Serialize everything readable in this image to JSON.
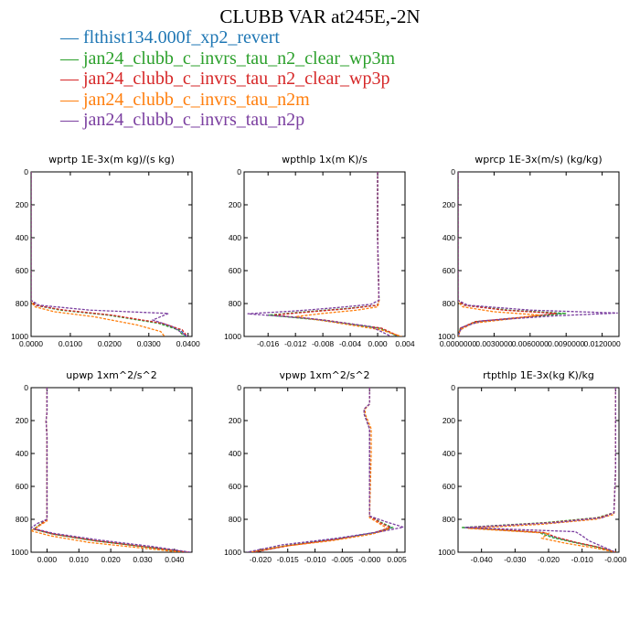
{
  "title": "CLUBB VAR at245E,-2N",
  "legend": [
    {
      "label": "flthist134.000f_xp2_revert",
      "color": "#1f77b4"
    },
    {
      "label": "jan24_clubb_c_invrs_tau_n2_clear_wp3m",
      "color": "#2ca02c"
    },
    {
      "label": "jan24_clubb_c_invrs_tau_n2_clear_wp3p",
      "color": "#d62728"
    },
    {
      "label": "jan24_clubb_c_invrs_tau_n2m",
      "color": "#ff7f0e"
    },
    {
      "label": "jan24_clubb_c_invrs_tau_n2p",
      "color": "#7b3fa0"
    }
  ],
  "chart_data": [
    {
      "type": "line",
      "title": "wprtp  1E-3x(m kg)/(s kg)",
      "xlim": [
        0,
        0.041
      ],
      "ylim": [
        1000,
        0
      ],
      "xticks": [
        "0.0000",
        "0.0100",
        "0.0200",
        "0.0300",
        "0.0400"
      ],
      "xtick_values": [
        0,
        0.01,
        0.02,
        0.03,
        0.04
      ],
      "yticks": [
        "0",
        "200",
        "400",
        "600",
        "800",
        "1000"
      ],
      "series": [
        {
          "color": "#1f77b4",
          "y": [
            0,
            780,
            810,
            840,
            870,
            920,
            960,
            1000
          ],
          "x": [
            0,
            0,
            0.001,
            0.008,
            0.02,
            0.033,
            0.038,
            0.0395
          ]
        },
        {
          "color": "#2ca02c",
          "y": [
            0,
            780,
            810,
            840,
            870,
            920,
            960,
            1000
          ],
          "x": [
            0,
            0,
            0.001,
            0.0075,
            0.0195,
            0.0325,
            0.0375,
            0.039
          ]
        },
        {
          "color": "#d62728",
          "y": [
            0,
            780,
            810,
            840,
            870,
            920,
            960,
            1000
          ],
          "x": [
            0,
            0,
            0.001,
            0.0085,
            0.0205,
            0.0335,
            0.0385,
            0.0398
          ]
        },
        {
          "color": "#ff7f0e",
          "y": [
            0,
            790,
            820,
            850,
            880,
            930,
            970,
            1000
          ],
          "x": [
            0,
            0,
            0.001,
            0.006,
            0.016,
            0.027,
            0.033,
            0.034
          ]
        },
        {
          "color": "#7b3fa0",
          "y": [
            0,
            780,
            810,
            840,
            860,
            900,
            940,
            1000
          ],
          "x": [
            0,
            0,
            0.002,
            0.015,
            0.035,
            0.031,
            0.036,
            0.0398
          ]
        }
      ]
    },
    {
      "type": "line",
      "title": "wpthlp  1x(m K)/s",
      "xlim": [
        -0.0195,
        0.004
      ],
      "ylim": [
        1000,
        0
      ],
      "xticks": [
        "-0.016",
        "-0.012",
        "-0.008",
        "-0.004",
        "0.000",
        "0.004"
      ],
      "xtick_values": [
        -0.016,
        -0.012,
        -0.008,
        -0.004,
        0,
        0.004
      ],
      "yticks": [
        "0",
        "200",
        "400",
        "600",
        "800",
        "1000"
      ],
      "series": [
        {
          "color": "#1f77b4",
          "y": [
            0,
            400,
            780,
            810,
            830,
            850,
            870,
            900,
            950,
            1000
          ],
          "x": [
            0,
            0,
            0.0002,
            0,
            -0.004,
            -0.01,
            -0.0155,
            -0.008,
            0.0005,
            0.003
          ]
        },
        {
          "color": "#2ca02c",
          "y": [
            0,
            400,
            780,
            810,
            830,
            850,
            870,
            900,
            950,
            1000
          ],
          "x": [
            0,
            0,
            0.0002,
            0,
            -0.0045,
            -0.0105,
            -0.016,
            -0.0085,
            0.0003,
            0.003
          ]
        },
        {
          "color": "#d62728",
          "y": [
            0,
            400,
            780,
            810,
            830,
            850,
            870,
            900,
            950,
            1000
          ],
          "x": [
            0,
            0,
            0.0002,
            0,
            -0.004,
            -0.0098,
            -0.0152,
            -0.0078,
            0.0006,
            0.0032
          ]
        },
        {
          "color": "#ff7f0e",
          "y": [
            0,
            400,
            790,
            820,
            840,
            860,
            880,
            910,
            960,
            1000
          ],
          "x": [
            0,
            0,
            0.0002,
            0,
            -0.003,
            -0.008,
            -0.012,
            -0.007,
            0.0005,
            0.0035
          ]
        },
        {
          "color": "#7b3fa0",
          "y": [
            0,
            400,
            780,
            805,
            825,
            845,
            862,
            890,
            940,
            1000
          ],
          "x": [
            0,
            0,
            0.0002,
            -0.001,
            -0.006,
            -0.012,
            -0.019,
            -0.01,
            -0.001,
            0.002
          ]
        }
      ]
    },
    {
      "type": "line",
      "title": "wprcp  1E-3x(m/s) (kg/kg)",
      "xlim": [
        0,
        0.0134
      ],
      "ylim": [
        1000,
        0
      ],
      "xticks": [
        "0.0000000",
        "0.0030000",
        "0.0060000",
        "0.0090000",
        "0.0120000"
      ],
      "xtick_values": [
        0,
        0.003,
        0.006,
        0.009,
        0.012
      ],
      "yticks": [
        "0",
        "200",
        "400",
        "600",
        "800",
        "1000"
      ],
      "series": [
        {
          "color": "#1f77b4",
          "y": [
            0,
            780,
            810,
            840,
            860,
            880,
            910,
            950,
            1000
          ],
          "x": [
            0,
            0,
            0.0005,
            0.004,
            0.0085,
            0.006,
            0.0015,
            0.0002,
            0
          ]
        },
        {
          "color": "#2ca02c",
          "y": [
            0,
            780,
            810,
            840,
            860,
            880,
            910,
            950,
            1000
          ],
          "x": [
            0,
            0,
            0.0005,
            0.0042,
            0.009,
            0.0062,
            0.0015,
            0.0002,
            0
          ]
        },
        {
          "color": "#d62728",
          "y": [
            0,
            780,
            810,
            840,
            860,
            880,
            910,
            950,
            1000
          ],
          "x": [
            0,
            0,
            0.0005,
            0.0038,
            0.0082,
            0.0058,
            0.0014,
            0.0002,
            0
          ]
        },
        {
          "color": "#ff7f0e",
          "y": [
            0,
            790,
            820,
            850,
            870,
            890,
            920,
            960,
            1000
          ],
          "x": [
            0,
            0,
            0.0004,
            0.003,
            0.0068,
            0.0048,
            0.0012,
            0.0002,
            0
          ]
        },
        {
          "color": "#7b3fa0",
          "y": [
            0,
            780,
            810,
            840,
            858,
            875,
            905,
            945,
            1000
          ],
          "x": [
            0,
            0,
            0.0008,
            0.006,
            0.0133,
            0.008,
            0.002,
            0.0003,
            0
          ]
        }
      ]
    },
    {
      "type": "line",
      "title": "upwp  1xm^2/s^2",
      "xlim": [
        -0.005,
        0.0455
      ],
      "ylim": [
        1000,
        0
      ],
      "xticks": [
        "0.000",
        "0.010",
        "0.020",
        "0.030",
        "0.040"
      ],
      "xtick_values": [
        0,
        0.01,
        0.02,
        0.03,
        0.04
      ],
      "yticks": [
        "0",
        "200",
        "400",
        "600",
        "800",
        "1000"
      ],
      "series": [
        {
          "color": "#1f77b4",
          "y": [
            0,
            150,
            200,
            300,
            800,
            830,
            860,
            890,
            930,
            970,
            1000
          ],
          "x": [
            0,
            0,
            -0.0003,
            0,
            0,
            -0.002,
            -0.004,
            0.002,
            0.015,
            0.032,
            0.044
          ]
        },
        {
          "color": "#2ca02c",
          "y": [
            0,
            150,
            200,
            300,
            800,
            830,
            860,
            890,
            930,
            970,
            1000
          ],
          "x": [
            0,
            0,
            -0.0003,
            0,
            0,
            -0.0022,
            -0.0042,
            0.0018,
            0.0148,
            0.0318,
            0.0438
          ]
        },
        {
          "color": "#d62728",
          "y": [
            0,
            150,
            200,
            300,
            800,
            830,
            860,
            890,
            930,
            970,
            1000
          ],
          "x": [
            0,
            0,
            -0.0003,
            0,
            0,
            -0.0019,
            -0.0039,
            0.0021,
            0.0151,
            0.0321,
            0.0441
          ]
        },
        {
          "color": "#ff7f0e",
          "y": [
            0,
            150,
            200,
            300,
            810,
            840,
            870,
            900,
            940,
            975,
            1000
          ],
          "x": [
            0,
            0,
            -0.0003,
            0,
            0,
            -0.0025,
            -0.005,
            0.001,
            0.013,
            0.03,
            0.042
          ]
        },
        {
          "color": "#7b3fa0",
          "y": [
            0,
            150,
            200,
            300,
            800,
            825,
            852,
            885,
            925,
            965,
            1000
          ],
          "x": [
            0,
            0,
            -0.0003,
            0,
            0,
            -0.003,
            -0.005,
            0.002,
            0.016,
            0.033,
            0.045
          ]
        }
      ]
    },
    {
      "type": "line",
      "title": "vpwp  1xm^2/s^2",
      "xlim": [
        -0.023,
        0.0065
      ],
      "ylim": [
        1000,
        0
      ],
      "xticks": [
        "-0.020",
        "-0.015",
        "-0.010",
        "-0.005",
        "-0.000",
        "0.005"
      ],
      "xtick_values": [
        -0.02,
        -0.015,
        -0.01,
        -0.005,
        0,
        0.005
      ],
      "yticks": [
        "0",
        "200",
        "400",
        "600",
        "800",
        "1000"
      ],
      "series": [
        {
          "color": "#1f77b4",
          "y": [
            0,
            100,
            130,
            160,
            250,
            400,
            780,
            820,
            850,
            880,
            920,
            960,
            1000
          ],
          "x": [
            0,
            0,
            -0.001,
            -0.001,
            0,
            0,
            0,
            0.002,
            0.004,
            0.001,
            -0.006,
            -0.015,
            -0.0215
          ]
        },
        {
          "color": "#2ca02c",
          "y": [
            0,
            100,
            130,
            160,
            250,
            400,
            780,
            820,
            850,
            880,
            920,
            960,
            1000
          ],
          "x": [
            0,
            0,
            -0.001,
            -0.001,
            0,
            0,
            0,
            0.0022,
            0.0042,
            0.0011,
            -0.0062,
            -0.0152,
            -0.0217
          ]
        },
        {
          "color": "#d62728",
          "y": [
            0,
            100,
            130,
            160,
            250,
            400,
            780,
            820,
            850,
            880,
            920,
            960,
            1000
          ],
          "x": [
            0,
            0,
            -0.001,
            -0.001,
            0,
            0,
            0,
            0.0019,
            0.0038,
            0.0009,
            -0.0058,
            -0.0148,
            -0.0213
          ]
        },
        {
          "color": "#ff7f0e",
          "y": [
            0,
            100,
            130,
            160,
            250,
            400,
            790,
            830,
            860,
            890,
            930,
            965,
            1000
          ],
          "x": [
            0,
            0,
            -0.0008,
            -0.0008,
            0.0003,
            0.0003,
            0,
            0.002,
            0.0035,
            0.0005,
            -0.007,
            -0.016,
            -0.022
          ]
        },
        {
          "color": "#7b3fa0",
          "y": [
            0,
            100,
            130,
            160,
            250,
            400,
            780,
            815,
            848,
            875,
            915,
            955,
            1000
          ],
          "x": [
            0,
            0,
            -0.001,
            -0.001,
            0,
            0,
            0,
            0.003,
            0.0062,
            0.002,
            -0.006,
            -0.016,
            -0.0225
          ]
        }
      ]
    },
    {
      "type": "line",
      "title": "rtpthlp  1E-3x(kg K)/kg",
      "xlim": [
        -0.047,
        0.001
      ],
      "ylim": [
        1000,
        0
      ],
      "xticks": [
        "-0.040",
        "-0.030",
        "-0.020",
        "-0.010",
        "-0.000"
      ],
      "xtick_values": [
        -0.04,
        -0.03,
        -0.02,
        -0.01,
        0
      ],
      "yticks": [
        "0",
        "200",
        "400",
        "600",
        "800",
        "1000"
      ],
      "series": [
        {
          "color": "#1f77b4",
          "y": [
            0,
            500,
            760,
            790,
            820,
            850,
            880,
            910,
            940,
            970,
            1000
          ],
          "x": [
            0,
            0,
            -0.0005,
            -0.005,
            -0.02,
            -0.045,
            -0.022,
            -0.018,
            -0.012,
            -0.005,
            0
          ]
        },
        {
          "color": "#2ca02c",
          "y": [
            0,
            500,
            760,
            790,
            820,
            850,
            880,
            910,
            940,
            970,
            1000
          ],
          "x": [
            0,
            0,
            -0.0005,
            -0.0055,
            -0.021,
            -0.046,
            -0.023,
            -0.019,
            -0.0125,
            -0.0052,
            0
          ]
        },
        {
          "color": "#d62728",
          "y": [
            0,
            500,
            760,
            790,
            820,
            850,
            880,
            910,
            940,
            970,
            1000
          ],
          "x": [
            0,
            0,
            -0.0005,
            -0.0048,
            -0.0195,
            -0.0445,
            -0.0215,
            -0.0175,
            -0.0118,
            -0.0048,
            0
          ]
        },
        {
          "color": "#ff7f0e",
          "y": [
            0,
            500,
            770,
            800,
            830,
            855,
            885,
            915,
            945,
            975,
            1000
          ],
          "x": [
            0,
            0,
            -0.0005,
            -0.006,
            -0.022,
            -0.044,
            -0.02,
            -0.022,
            -0.015,
            -0.006,
            0
          ]
        },
        {
          "color": "#7b3fa0",
          "y": [
            0,
            500,
            760,
            790,
            820,
            850,
            875,
            900,
            930,
            965,
            1000
          ],
          "x": [
            0,
            0,
            -0.0005,
            -0.004,
            -0.018,
            -0.045,
            -0.012,
            -0.01,
            -0.008,
            -0.004,
            0
          ]
        }
      ]
    }
  ]
}
